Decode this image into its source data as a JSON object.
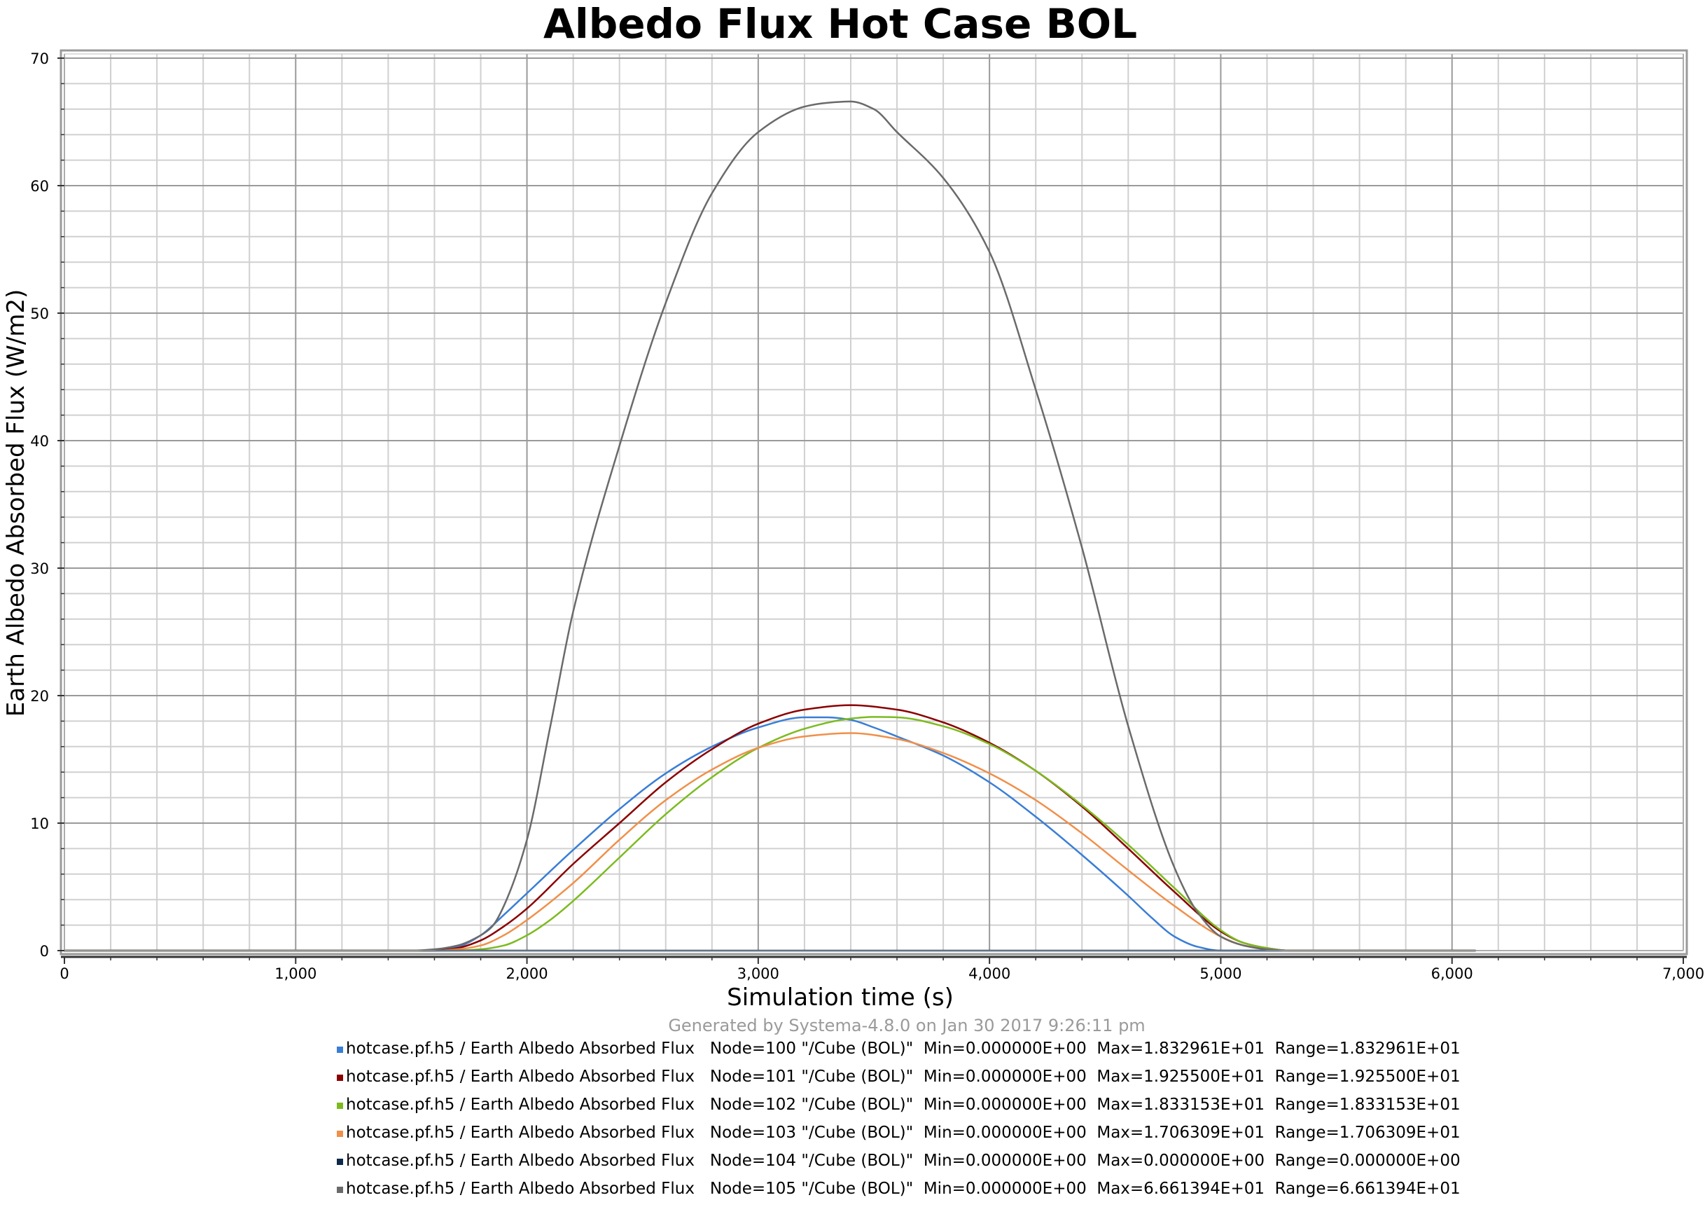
{
  "chart_data": {
    "type": "line",
    "title": "Albedo Flux Hot Case BOL",
    "xlabel": "Simulation time (s)",
    "ylabel": "Earth Albedo Absorbed Flux (W/m2)",
    "xlim": [
      0,
      7000
    ],
    "ylim": [
      0,
      70
    ],
    "x_ticks": [
      0,
      1000,
      2000,
      3000,
      4000,
      5000,
      6000,
      7000
    ],
    "x_tick_labels": [
      "0",
      "1,000",
      "2,000",
      "3,000",
      "4,000",
      "5,000",
      "6,000",
      "7,000"
    ],
    "y_ticks": [
      0,
      10,
      20,
      30,
      40,
      50,
      60,
      70
    ],
    "y_tick_labels": [
      "0",
      "10",
      "20",
      "30",
      "40",
      "50",
      "60",
      "70"
    ],
    "grid": true,
    "generated_note": "Generated by Systema-4.8.0 on Jan 30 2017 9:26:11 pm",
    "series": [
      {
        "legend": "hotcase.pf.h5 / Earth Albedo Absorbed Flux   Node=100 \"/Cube (BOL)\"  Min=0.000000E+00  Max=1.832961E+01  Range=1.832961E+01",
        "color": "#3a7ed6",
        "x": [
          0,
          1500,
          1600,
          1700,
          1800,
          1900,
          2000,
          2200,
          2400,
          2600,
          2800,
          3000,
          3200,
          3300,
          3400,
          3500,
          3600,
          3800,
          4000,
          4200,
          4400,
          4600,
          4700,
          4800,
          4900,
          5000,
          6100
        ],
        "y": [
          0,
          0,
          0.05,
          0.3,
          1.2,
          2.8,
          4.5,
          7.9,
          11.1,
          13.9,
          16.0,
          17.5,
          18.3,
          18.3,
          18.1,
          17.5,
          16.8,
          15.3,
          13.2,
          10.5,
          7.5,
          4.3,
          2.6,
          1.1,
          0.3,
          0,
          0
        ]
      },
      {
        "legend": "hotcase.pf.h5 / Earth Albedo Absorbed Flux   Node=101 \"/Cube (BOL)\"  Min=0.000000E+00  Max=1.925500E+01  Range=1.925500E+01",
        "color": "#8b0000",
        "x": [
          0,
          1600,
          1700,
          1800,
          1900,
          2000,
          2200,
          2400,
          2600,
          2800,
          3000,
          3200,
          3400,
          3600,
          3800,
          4000,
          4200,
          4400,
          4600,
          4800,
          5000,
          5100,
          5200,
          5300,
          6100
        ],
        "y": [
          0,
          0,
          0.2,
          0.8,
          1.9,
          3.3,
          6.8,
          10.0,
          13.2,
          15.8,
          17.8,
          18.9,
          19.25,
          18.9,
          17.9,
          16.3,
          14.1,
          11.3,
          8.0,
          4.6,
          1.5,
          0.6,
          0.2,
          0,
          0
        ]
      },
      {
        "legend": "hotcase.pf.h5 / Earth Albedo Absorbed Flux   Node=102 \"/Cube (BOL)\"  Min=0.000000E+00  Max=1.833153E+01  Range=1.833153E+01",
        "color": "#7cbb1e",
        "x": [
          0,
          1700,
          1800,
          1900,
          2000,
          2100,
          2200,
          2400,
          2600,
          2800,
          3000,
          3200,
          3400,
          3500,
          3600,
          3800,
          4000,
          4200,
          4400,
          4600,
          4800,
          5000,
          5100,
          5200,
          5300,
          6100
        ],
        "y": [
          0,
          0,
          0.1,
          0.4,
          1.2,
          2.4,
          3.9,
          7.3,
          10.7,
          13.6,
          15.9,
          17.4,
          18.2,
          18.33,
          18.3,
          17.6,
          16.2,
          14.1,
          11.4,
          8.3,
          4.9,
          1.6,
          0.6,
          0.2,
          0,
          0
        ]
      },
      {
        "legend": "hotcase.pf.h5 / Earth Albedo Absorbed Flux   Node=103 \"/Cube (BOL)\"  Min=0.000000E+00  Max=1.706309E+01  Range=1.706309E+01",
        "color": "#f0904a",
        "x": [
          0,
          1600,
          1700,
          1800,
          1900,
          2000,
          2200,
          2400,
          2600,
          2800,
          3000,
          3200,
          3400,
          3600,
          3800,
          4000,
          4200,
          4400,
          4600,
          4800,
          5000,
          5100,
          5200,
          5300,
          6100
        ],
        "y": [
          0,
          0,
          0.1,
          0.4,
          1.2,
          2.4,
          5.3,
          8.7,
          11.8,
          14.2,
          15.9,
          16.8,
          17.06,
          16.6,
          15.5,
          13.9,
          11.8,
          9.2,
          6.3,
          3.5,
          1.1,
          0.4,
          0.1,
          0,
          0
        ]
      },
      {
        "legend": "hotcase.pf.h5 / Earth Albedo Absorbed Flux   Node=104 \"/Cube (BOL)\"  Min=0.000000E+00  Max=0.000000E+00  Range=0.000000E+00",
        "color": "#0d2a4a",
        "x": [
          0,
          6100
        ],
        "y": [
          0,
          0
        ]
      },
      {
        "legend": "hotcase.pf.h5 / Earth Albedo Absorbed Flux   Node=105 \"/Cube (BOL)\"  Min=0.000000E+00  Max=6.661394E+01  Range=6.661394E+01",
        "color": "#6a6a6a",
        "x": [
          0,
          1500,
          1600,
          1700,
          1800,
          1850,
          1900,
          2000,
          2100,
          2200,
          2400,
          2600,
          2800,
          3000,
          3200,
          3300,
          3400,
          3500,
          3600,
          3800,
          4000,
          4200,
          4400,
          4600,
          4800,
          4900,
          5000,
          5100,
          5200,
          5300,
          6100
        ],
        "y": [
          0,
          0,
          0.1,
          0.4,
          1.2,
          1.9,
          3.5,
          8.7,
          17.5,
          26.6,
          39.6,
          50.8,
          59.4,
          64.2,
          66.2,
          66.5,
          66.6,
          66.0,
          64.2,
          60.6,
          54.8,
          44.0,
          31.6,
          17.6,
          6.5,
          3.0,
          1.1,
          0.4,
          0.1,
          0,
          0
        ]
      }
    ]
  }
}
